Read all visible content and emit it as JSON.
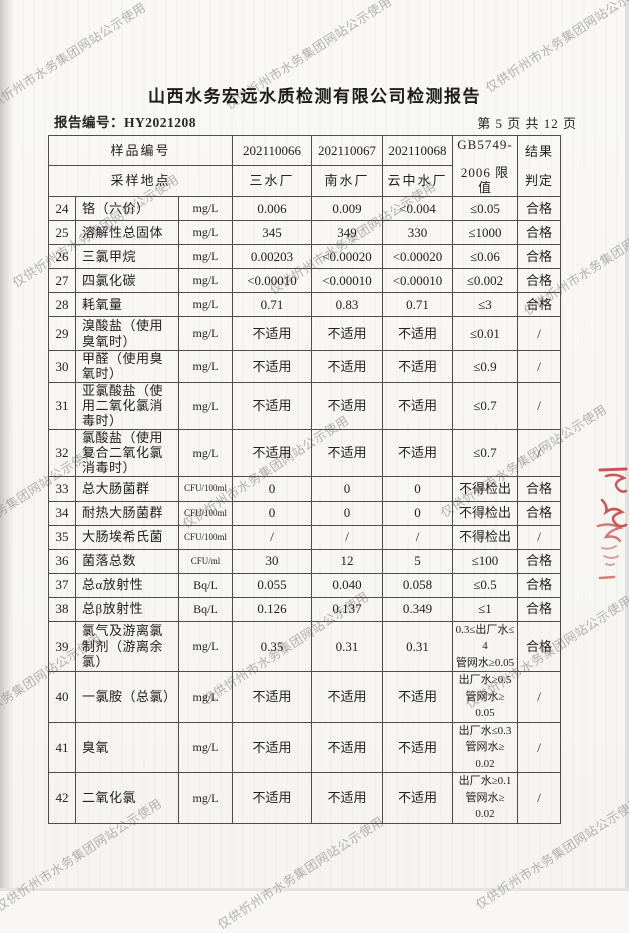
{
  "page": {
    "title": "山西水务宏远水质检测有限公司检测报告",
    "report_no": "报告编号：HY2021208",
    "page_info": "第 5 页 共 12 页"
  },
  "watermark": {
    "text": "仅供忻州市水务集团网站公示使用",
    "color": "#878787"
  },
  "stamp": {
    "color": "#c23a3a"
  },
  "table": {
    "header": {
      "sample_id_label": "样品编号",
      "location_label": "采样地点",
      "sample_ids": [
        "202110066",
        "202110067",
        "202110068"
      ],
      "locations": [
        "三水厂",
        "南水厂",
        "云中水厂"
      ],
      "limit_line1": "GB5749-",
      "limit_line2": "2006 限值",
      "result_line1": "结果",
      "result_line2": "判定"
    },
    "rows": [
      {
        "no": "24",
        "name": "铬（六价）",
        "unit": "mg/L",
        "values": [
          "0.006",
          "0.009",
          "<0.004"
        ],
        "limit": "≤0.05",
        "result": "合格"
      },
      {
        "no": "25",
        "name": "溶解性总固体",
        "unit": "mg/L",
        "values": [
          "345",
          "349",
          "330"
        ],
        "limit": "≤1000",
        "result": "合格"
      },
      {
        "no": "26",
        "name": "三氯甲烷",
        "unit": "mg/L",
        "values": [
          "0.00203",
          "<0.00020",
          "<0.00020"
        ],
        "limit": "≤0.06",
        "result": "合格"
      },
      {
        "no": "27",
        "name": "四氯化碳",
        "unit": "mg/L",
        "values": [
          "<0.00010",
          "<0.00010",
          "<0.00010"
        ],
        "limit": "≤0.002",
        "result": "合格"
      },
      {
        "no": "28",
        "name": "耗氧量",
        "unit": "mg/L",
        "values": [
          "0.71",
          "0.83",
          "0.71"
        ],
        "limit": "≤3",
        "result": "合格"
      },
      {
        "no": "29",
        "name": "溴酸盐（使用臭氧时）",
        "unit": "mg/L",
        "values": [
          "不适用",
          "不适用",
          "不适用"
        ],
        "limit": "≤0.01",
        "result": "/"
      },
      {
        "no": "30",
        "name": "甲醛（使用臭氧时）",
        "unit": "mg/L",
        "values": [
          "不适用",
          "不适用",
          "不适用"
        ],
        "limit": "≤0.9",
        "result": "/"
      },
      {
        "no": "31",
        "name": "亚氯酸盐（使用二氧化氯消毒时）",
        "unit": "mg/L",
        "values": [
          "不适用",
          "不适用",
          "不适用"
        ],
        "limit": "≤0.7",
        "result": "/"
      },
      {
        "no": "32",
        "name": "氯酸盐（使用复合二氧化氯消毒时）",
        "unit": "mg/L",
        "values": [
          "不适用",
          "不适用",
          "不适用"
        ],
        "limit": "≤0.7",
        "result": "/"
      },
      {
        "no": "33",
        "name": "总大肠菌群",
        "unit": "CFU/100ml",
        "values": [
          "0",
          "0",
          "0"
        ],
        "limit": "不得检出",
        "result": "合格"
      },
      {
        "no": "34",
        "name": "耐热大肠菌群",
        "unit": "CFU/100ml",
        "values": [
          "0",
          "0",
          "0"
        ],
        "limit": "不得检出",
        "result": "合格"
      },
      {
        "no": "35",
        "name": "大肠埃希氏菌",
        "unit": "CFU/100ml",
        "values": [
          "/",
          "/",
          "/"
        ],
        "limit": "不得检出",
        "result": "/"
      },
      {
        "no": "36",
        "name": "菌落总数",
        "unit": "CFU/ml",
        "values": [
          "30",
          "12",
          "5"
        ],
        "limit": "≤100",
        "result": "合格"
      },
      {
        "no": "37",
        "name": "总α放射性",
        "unit": "Bq/L",
        "values": [
          "0.055",
          "0.040",
          "0.058"
        ],
        "limit": "≤0.5",
        "result": "合格"
      },
      {
        "no": "38",
        "name": "总β放射性",
        "unit": "Bq/L",
        "values": [
          "0.126",
          "0.137",
          "0.349"
        ],
        "limit": "≤1",
        "result": "合格"
      },
      {
        "no": "39",
        "name": "氯气及游离氯制剂（游离余氯）",
        "unit": "mg/L",
        "values": [
          "0.35",
          "0.31",
          "0.31"
        ],
        "limit": "0.3≤出厂水≤\n4\n管网水≥0.05",
        "result": "合格"
      },
      {
        "no": "40",
        "name": "一氯胺（总氯）",
        "unit": "mg/L",
        "values": [
          "不适用",
          "不适用",
          "不适用"
        ],
        "limit": "出厂水≥0.5\n管网水≥\n0.05",
        "result": "/"
      },
      {
        "no": "41",
        "name": "臭氧",
        "unit": "mg/L",
        "values": [
          "不适用",
          "不适用",
          "不适用"
        ],
        "limit": "出厂水≤0.3\n管网水≥\n0.02",
        "result": "/"
      },
      {
        "no": "42",
        "name": "二氧化氯",
        "unit": "mg/L",
        "values": [
          "不适用",
          "不适用",
          "不适用"
        ],
        "limit": "出厂水≥0.1\n管网水≥\n0.02",
        "result": "/"
      }
    ]
  }
}
